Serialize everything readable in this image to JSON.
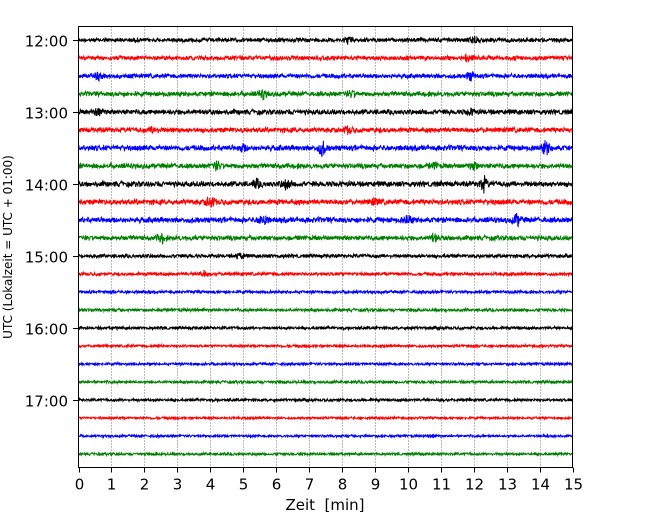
{
  "chart_data": {
    "type": "line",
    "subtype": "helicorder",
    "title": "",
    "xlabel": "Zeit  [min]",
    "ylabel": "UTC (Lokalzeit = UTC + 01:00)",
    "xlim": [
      0,
      15
    ],
    "x_ticks": [
      0,
      1,
      2,
      3,
      4,
      5,
      6,
      7,
      8,
      9,
      10,
      11,
      12,
      13,
      14,
      15
    ],
    "y_tick_labels": [
      "12:00",
      "13:00",
      "14:00",
      "15:00",
      "16:00",
      "17:00"
    ],
    "start_time": "12:00",
    "line_minutes": 15,
    "grid": "vertical dotted at each minute",
    "colors": [
      "#000000",
      "#ff0000",
      "#0000ff",
      "#008000"
    ],
    "traces": [
      {
        "start": "12:00",
        "noise": 2.2,
        "events": [
          {
            "t": 12.0,
            "amp": 4
          },
          {
            "t": 8.2,
            "amp": 3
          }
        ]
      },
      {
        "start": "12:15",
        "noise": 2.4,
        "events": [
          {
            "t": 11.8,
            "amp": 4
          }
        ]
      },
      {
        "start": "12:30",
        "noise": 2.4,
        "events": [
          {
            "t": 0.6,
            "amp": 4
          },
          {
            "t": 11.9,
            "amp": 4
          }
        ]
      },
      {
        "start": "12:45",
        "noise": 2.6,
        "events": [
          {
            "t": 5.6,
            "amp": 4
          },
          {
            "t": 8.3,
            "amp": 3
          }
        ]
      },
      {
        "start": "13:00",
        "noise": 2.8,
        "events": [
          {
            "t": 0.6,
            "amp": 4
          },
          {
            "t": 11.9,
            "amp": 3
          }
        ]
      },
      {
        "start": "13:15",
        "noise": 2.8,
        "events": [
          {
            "t": 2.3,
            "amp": 3
          },
          {
            "t": 8.2,
            "amp": 3
          }
        ]
      },
      {
        "start": "13:30",
        "noise": 3.0,
        "events": [
          {
            "t": 7.4,
            "amp": 7
          },
          {
            "t": 14.2,
            "amp": 6
          },
          {
            "t": 5.0,
            "amp": 3
          }
        ]
      },
      {
        "start": "13:45",
        "noise": 2.8,
        "events": [
          {
            "t": 4.2,
            "amp": 4
          },
          {
            "t": 12.0,
            "amp": 4
          },
          {
            "t": 10.8,
            "amp": 3
          }
        ]
      },
      {
        "start": "14:00",
        "noise": 3.0,
        "events": [
          {
            "t": 12.3,
            "amp": 7
          },
          {
            "t": 6.3,
            "amp": 5
          },
          {
            "t": 5.4,
            "amp": 4
          }
        ]
      },
      {
        "start": "14:15",
        "noise": 3.0,
        "events": [
          {
            "t": 4.0,
            "amp": 5
          },
          {
            "t": 9.0,
            "amp": 3
          }
        ]
      },
      {
        "start": "14:30",
        "noise": 3.0,
        "events": [
          {
            "t": 5.6,
            "amp": 6
          },
          {
            "t": 13.3,
            "amp": 6
          },
          {
            "t": 10.0,
            "amp": 4
          }
        ]
      },
      {
        "start": "14:45",
        "noise": 2.6,
        "events": [
          {
            "t": 2.5,
            "amp": 5
          },
          {
            "t": 10.8,
            "amp": 4
          }
        ]
      },
      {
        "start": "15:00",
        "noise": 2.0,
        "events": [
          {
            "t": 4.9,
            "amp": 3
          }
        ]
      },
      {
        "start": "15:15",
        "noise": 1.8,
        "events": [
          {
            "t": 3.8,
            "amp": 3
          }
        ]
      },
      {
        "start": "15:30",
        "noise": 1.6,
        "events": []
      },
      {
        "start": "15:45",
        "noise": 1.6,
        "events": []
      },
      {
        "start": "16:00",
        "noise": 1.6,
        "events": []
      },
      {
        "start": "16:15",
        "noise": 1.4,
        "events": []
      },
      {
        "start": "16:30",
        "noise": 1.4,
        "events": []
      },
      {
        "start": "16:45",
        "noise": 1.5,
        "events": []
      },
      {
        "start": "17:00",
        "noise": 1.5,
        "events": []
      },
      {
        "start": "17:15",
        "noise": 1.3,
        "events": []
      },
      {
        "start": "17:30",
        "noise": 1.3,
        "events": []
      },
      {
        "start": "17:45",
        "noise": 1.4,
        "events": []
      }
    ]
  }
}
